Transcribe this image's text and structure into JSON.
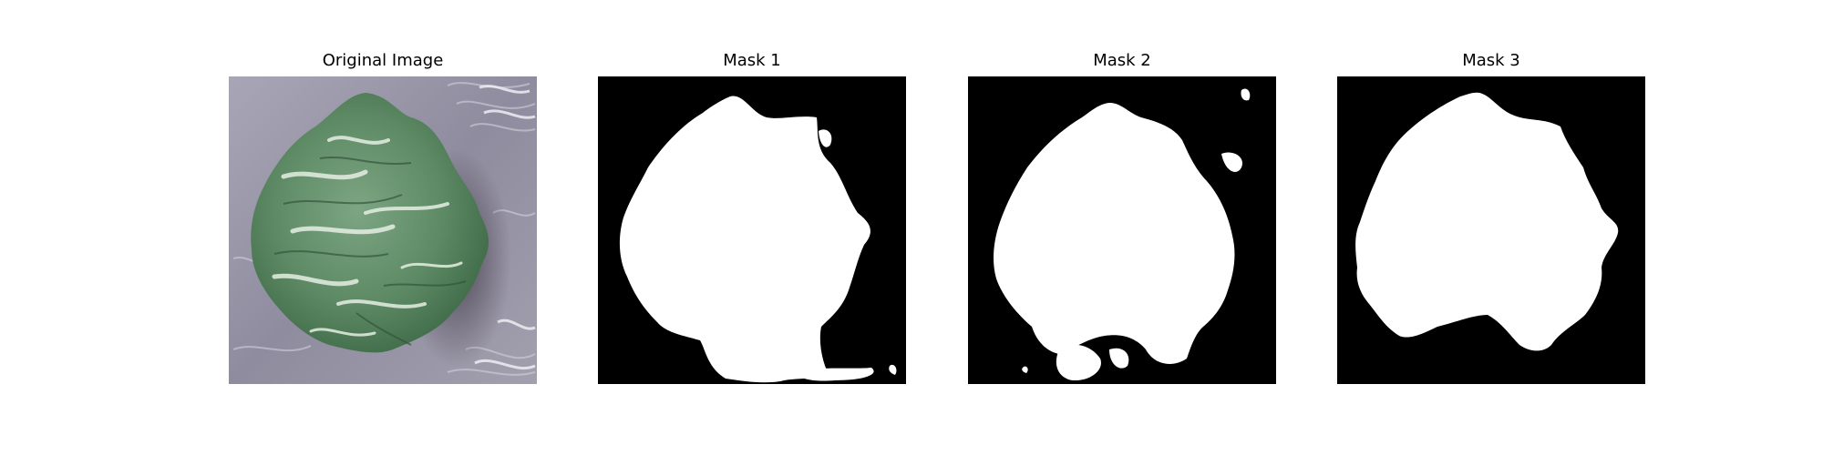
{
  "figure": {
    "panels": [
      {
        "title": "Original Image",
        "kind": "photo"
      },
      {
        "title": "Mask 1",
        "kind": "mask"
      },
      {
        "title": "Mask 2",
        "kind": "mask"
      },
      {
        "title": "Mask 3",
        "kind": "mask"
      }
    ]
  },
  "colors": {
    "mask_background": "#000000",
    "mask_foreground": "#ffffff",
    "photo_background": "#8c8a9c",
    "leaf_dark": "#4f7a58",
    "leaf_mid": "#6f9a72",
    "leaf_light": "#c9dcc8"
  }
}
